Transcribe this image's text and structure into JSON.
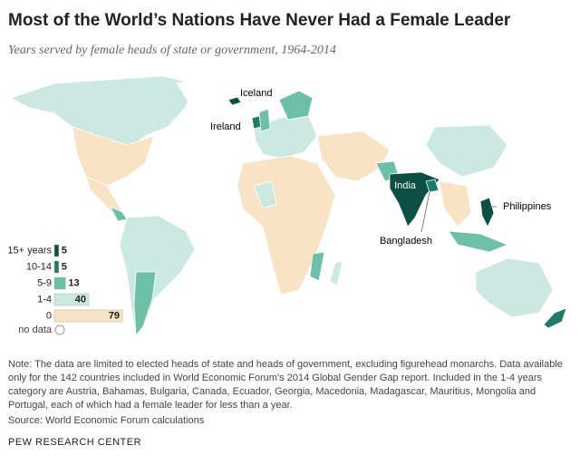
{
  "header": {
    "title": "Most of the World’s Nations Have Never Had a Female Leader",
    "subtitle": "Years served by female heads of state or government, 1964-2014"
  },
  "legend": {
    "items": [
      {
        "label": "15+ years",
        "count": 5,
        "color": "#0c4f43"
      },
      {
        "label": "10-14",
        "count": 5,
        "color": "#1d7b66"
      },
      {
        "label": "5-9",
        "count": 13,
        "color": "#6cc0a8"
      },
      {
        "label": "1-4",
        "count": 40,
        "color": "#cbe9e1"
      },
      {
        "label": "0",
        "count": 79,
        "color": "#f8e3c5"
      }
    ],
    "no_data": "no data"
  },
  "map_labels": [
    "Iceland",
    "Ireland",
    "India",
    "Philippines",
    "Bangladesh"
  ],
  "note": "Note: The data are limited to elected heads of state and heads of government, excluding figurehead monarchs. Data available only for the 142 countries included in World Economic Forum’s 2014 Global Gender Gap report. Included in the 1-4 years category are Austria, Bahamas, Bulgaria, Canada, Ecuador, Georgia, Macedonia, Madagascar, Mauritius, Mongolia and Portugal, each of which had a female leader for less than a year.",
  "source": "Source: World Economic Forum calculations",
  "footer": "PEW RESEARCH CENTER"
}
